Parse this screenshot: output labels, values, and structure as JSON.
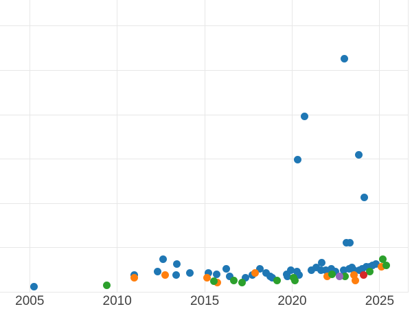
{
  "figure": {
    "background": "#ffffff",
    "grid_color": "#e7e7e7",
    "tick_label_color": "#414141"
  },
  "chart_data": {
    "type": "scatter",
    "title": "",
    "xlabel": "",
    "ylabel": "",
    "legend": "none",
    "grid": true,
    "x_ticks": [
      "2005",
      "2010",
      "2015",
      "2020",
      "2025"
    ],
    "x_tick_values": [
      2005,
      2010,
      2015,
      2020,
      2025
    ],
    "x_range": [
      2003.3,
      2026.6
    ],
    "y_range": [
      0,
      6.6
    ],
    "y_gridline_step": 1,
    "y_axis_note": "y-axis tick labels are cropped out of the visible image; y values estimated in gridline units (1 unit per horizontal gridline above baseline)",
    "marker_diameter_px": 11,
    "series": [
      {
        "name": "series-blue",
        "color": "#1f77b4",
        "points": [
          [
            2005.26,
            0.13
          ],
          [
            2010.99,
            0.39
          ],
          [
            2012.29,
            0.46
          ],
          [
            2012.64,
            0.75
          ],
          [
            2013.39,
            0.63
          ],
          [
            2013.35,
            0.38
          ],
          [
            2014.17,
            0.44
          ],
          [
            2015.23,
            0.43
          ],
          [
            2015.7,
            0.41
          ],
          [
            2016.25,
            0.53
          ],
          [
            2016.41,
            0.36
          ],
          [
            2017.35,
            0.32
          ],
          [
            2017.74,
            0.39
          ],
          [
            2018.17,
            0.52
          ],
          [
            2018.49,
            0.44
          ],
          [
            2018.73,
            0.35
          ],
          [
            2018.88,
            0.32
          ],
          [
            2019.67,
            0.41
          ],
          [
            2019.71,
            0.35
          ],
          [
            2019.94,
            0.5
          ],
          [
            2020.26,
            0.46
          ],
          [
            2020.41,
            0.39
          ],
          [
            2021.08,
            0.5
          ],
          [
            2021.36,
            0.55
          ],
          [
            2021.67,
            0.66
          ],
          [
            2021.63,
            0.5
          ],
          [
            2021.94,
            0.5
          ],
          [
            2022.22,
            0.53
          ],
          [
            2022.49,
            0.46
          ],
          [
            2022.93,
            0.49
          ],
          [
            2023.24,
            0.52
          ],
          [
            2023.4,
            0.55
          ],
          [
            2023.55,
            0.5
          ],
          [
            2023.83,
            0.5
          ],
          [
            2024.02,
            0.53
          ],
          [
            2024.22,
            0.57
          ],
          [
            2024.42,
            0.58
          ],
          [
            2024.61,
            0.6
          ],
          [
            2024.77,
            0.64
          ],
          [
            2023.12,
            1.12
          ],
          [
            2023.28,
            1.12
          ],
          [
            2020.33,
            2.98
          ],
          [
            2020.72,
            3.96
          ],
          [
            2023.79,
            3.1
          ],
          [
            2024.14,
            2.14
          ],
          [
            2023.0,
            5.27
          ]
        ]
      },
      {
        "name": "series-orange",
        "color": "#ff7f0e",
        "points": [
          [
            2010.99,
            0.33
          ],
          [
            2012.72,
            0.38
          ],
          [
            2015.12,
            0.32
          ],
          [
            2015.74,
            0.22
          ],
          [
            2017.9,
            0.43
          ],
          [
            2022.02,
            0.36
          ],
          [
            2023.55,
            0.39
          ],
          [
            2023.63,
            0.27
          ],
          [
            2025.12,
            0.57
          ]
        ]
      },
      {
        "name": "series-green",
        "color": "#2ca02c",
        "points": [
          [
            2009.42,
            0.16
          ],
          [
            2015.51,
            0.24
          ],
          [
            2016.65,
            0.27
          ],
          [
            2017.12,
            0.22
          ],
          [
            2019.12,
            0.26
          ],
          [
            2020.06,
            0.33
          ],
          [
            2020.14,
            0.27
          ],
          [
            2022.26,
            0.41
          ],
          [
            2023.04,
            0.36
          ],
          [
            2024.42,
            0.47
          ],
          [
            2025.2,
            0.75
          ],
          [
            2025.36,
            0.6
          ]
        ]
      },
      {
        "name": "series-red",
        "color": "#d62728",
        "points": [
          [
            2024.1,
            0.38
          ]
        ]
      },
      {
        "name": "series-purple",
        "color": "#9467bd",
        "points": [
          [
            2022.69,
            0.36
          ]
        ]
      }
    ]
  }
}
